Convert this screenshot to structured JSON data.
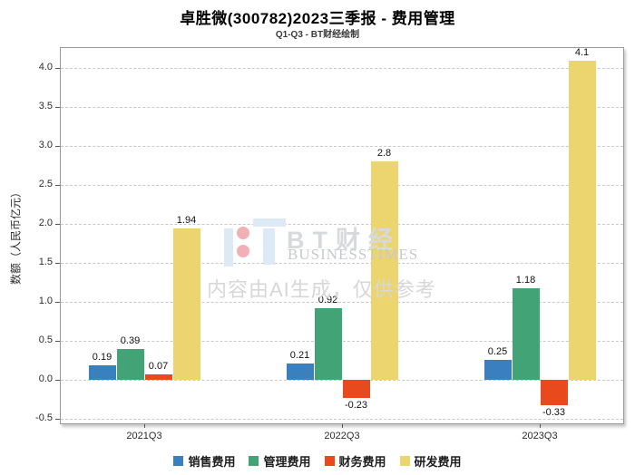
{
  "title": "卓胜微(300782)2023三季报 - 费用管理",
  "subtitle": "Q1-Q3 - BT财经绘制",
  "watermark": {
    "brand_cn": "BT财经",
    "brand_en": "BUSINESSTIMES",
    "disclaimer": "内容由AI生成，仅供参考"
  },
  "chart_data": {
    "type": "bar",
    "title": "卓胜微(300782)2023三季报 - 费用管理",
    "subtitle": "Q1-Q3 - BT财经绘制",
    "categories": [
      "2021Q3",
      "2022Q3",
      "2023Q3"
    ],
    "series": [
      {
        "name": "销售费用",
        "color": "#3a7fbe",
        "values": [
          0.19,
          0.21,
          0.25
        ]
      },
      {
        "name": "管理费用",
        "color": "#41a376",
        "values": [
          0.39,
          0.92,
          1.18
        ]
      },
      {
        "name": "财务费用",
        "color": "#e8491d",
        "values": [
          0.07,
          -0.23,
          -0.33
        ]
      },
      {
        "name": "研发费用",
        "color": "#ecd46f",
        "values": [
          1.94,
          2.8,
          4.1
        ]
      }
    ],
    "xlabel": "",
    "ylabel": "数额（人民币亿元）",
    "ylim": [
      -0.57,
      4.27
    ],
    "yticks": [
      "-0.5",
      "0.0",
      "0.5",
      "1.0",
      "1.5",
      "2.0",
      "2.5",
      "3.0",
      "3.5",
      "4.0"
    ],
    "grid": true,
    "grid_style": "dashed",
    "legend_position": "bottom"
  }
}
